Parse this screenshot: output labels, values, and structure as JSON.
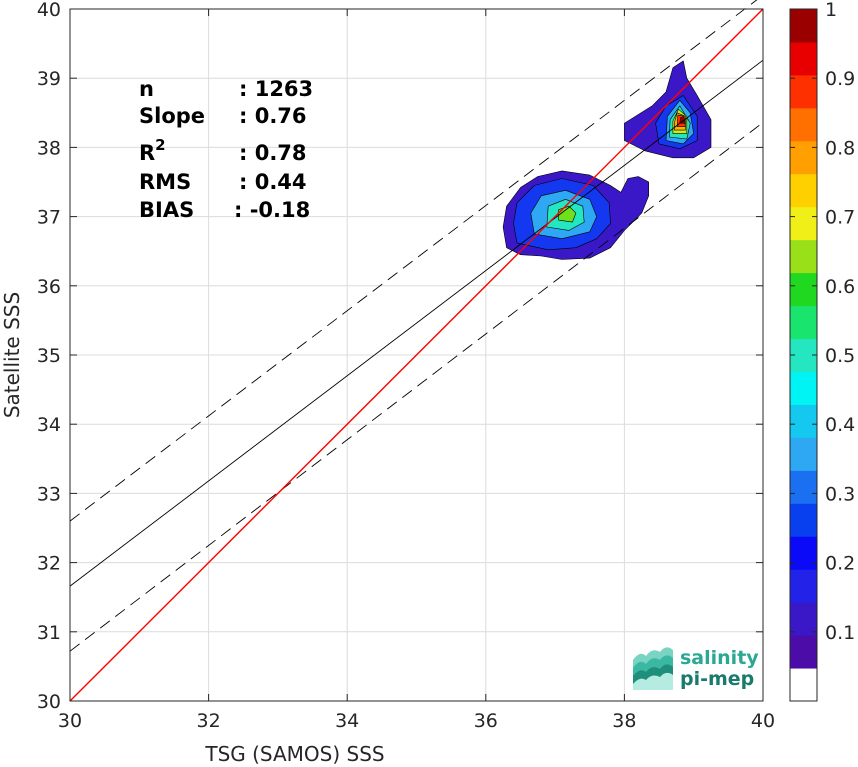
{
  "chart_data": {
    "type": "heatmap",
    "title": "",
    "xlabel": "TSG (SAMOS) SSS",
    "ylabel": "Satellite SSS",
    "xlim": [
      30,
      40
    ],
    "ylim": [
      30,
      40
    ],
    "xticks": [
      30,
      32,
      34,
      36,
      38,
      40
    ],
    "yticks": [
      30,
      31,
      32,
      33,
      34,
      35,
      36,
      37,
      38,
      39,
      40
    ],
    "grid": true,
    "stats": {
      "n": {
        "label": "n",
        "value": ": 1263"
      },
      "slope": {
        "label": "Slope",
        "value": ": 0.76"
      },
      "r2": {
        "label": "R",
        "sup": "2",
        "value": ": 0.78"
      },
      "rms": {
        "label": "RMS",
        "value": ": 0.44"
      },
      "bias": {
        "label": "BIAS",
        "value": ": -0.18"
      }
    },
    "lines": {
      "identity": {
        "x": [
          30,
          40
        ],
        "y": [
          30,
          40
        ],
        "color": "#ff0000"
      },
      "fit": {
        "x": [
          30,
          40
        ],
        "y": [
          31.66,
          39.26
        ],
        "color": "#000000"
      },
      "upper_bound": {
        "x": [
          30,
          40
        ],
        "y": [
          32.6,
          40.2
        ],
        "color": "#000000",
        "dash": true
      },
      "lower_bound": {
        "x": [
          30,
          40
        ],
        "y": [
          30.72,
          38.36
        ],
        "color": "#000000",
        "dash": true
      }
    },
    "density_clusters": [
      {
        "name": "cluster-low",
        "center": [
          37.15,
          37.02
        ],
        "levels": [
          {
            "level": 0.1,
            "color": "#3a18c8",
            "poly": [
              [
                36.3,
                36.55
              ],
              [
                36.5,
                36.45
              ],
              [
                36.8,
                36.43
              ],
              [
                37.1,
                36.38
              ],
              [
                37.5,
                36.4
              ],
              [
                37.8,
                36.55
              ],
              [
                38.0,
                36.8
              ],
              [
                38.25,
                37.05
              ],
              [
                38.35,
                37.3
              ],
              [
                38.35,
                37.5
              ],
              [
                38.2,
                37.58
              ],
              [
                38.05,
                37.55
              ],
              [
                37.95,
                37.35
              ],
              [
                37.8,
                37.45
              ],
              [
                37.5,
                37.6
              ],
              [
                37.1,
                37.66
              ],
              [
                36.75,
                37.58
              ],
              [
                36.5,
                37.42
              ],
              [
                36.3,
                37.15
              ],
              [
                36.25,
                36.85
              ]
            ]
          },
          {
            "level": 0.2,
            "color": "#1438f0",
            "poly": [
              [
                36.45,
                36.62
              ],
              [
                36.9,
                36.52
              ],
              [
                37.3,
                36.55
              ],
              [
                37.6,
                36.68
              ],
              [
                37.8,
                36.9
              ],
              [
                37.78,
                37.2
              ],
              [
                37.55,
                37.45
              ],
              [
                37.1,
                37.55
              ],
              [
                36.7,
                37.45
              ],
              [
                36.45,
                37.2
              ],
              [
                36.4,
                36.9
              ]
            ]
          },
          {
            "level": 0.3,
            "color": "#2ea8f2",
            "poly": [
              [
                36.7,
                36.75
              ],
              [
                37.1,
                36.68
              ],
              [
                37.5,
                36.78
              ],
              [
                37.6,
                37.0
              ],
              [
                37.5,
                37.25
              ],
              [
                37.15,
                37.38
              ],
              [
                36.8,
                37.3
              ],
              [
                36.65,
                37.05
              ]
            ]
          },
          {
            "level": 0.4,
            "color": "#24e6c0",
            "poly": [
              [
                36.88,
                36.85
              ],
              [
                37.2,
                36.8
              ],
              [
                37.42,
                36.92
              ],
              [
                37.4,
                37.15
              ],
              [
                37.15,
                37.25
              ],
              [
                36.9,
                37.15
              ]
            ]
          },
          {
            "level": 0.55,
            "color": "#6ee01c",
            "poly": [
              [
                37.05,
                36.95
              ],
              [
                37.25,
                36.92
              ],
              [
                37.3,
                37.05
              ],
              [
                37.2,
                37.15
              ],
              [
                37.05,
                37.1
              ]
            ]
          }
        ]
      },
      {
        "name": "cluster-high",
        "center": [
          38.82,
          38.38
        ],
        "levels": [
          {
            "level": 0.1,
            "color": "#3a18c8",
            "poly": [
              [
                38.0,
                38.1
              ],
              [
                38.3,
                37.95
              ],
              [
                38.7,
                37.85
              ],
              [
                39.0,
                37.85
              ],
              [
                39.25,
                38.0
              ],
              [
                39.25,
                38.4
              ],
              [
                39.05,
                38.75
              ],
              [
                38.9,
                39.0
              ],
              [
                38.85,
                39.25
              ],
              [
                38.7,
                39.15
              ],
              [
                38.6,
                38.8
              ],
              [
                38.4,
                38.6
              ],
              [
                38.0,
                38.35
              ]
            ]
          },
          {
            "level": 0.2,
            "color": "#1438f0",
            "poly": [
              [
                38.5,
                38.05
              ],
              [
                38.8,
                37.98
              ],
              [
                39.05,
                38.1
              ],
              [
                39.05,
                38.45
              ],
              [
                38.85,
                38.75
              ],
              [
                38.6,
                38.6
              ],
              [
                38.45,
                38.35
              ]
            ]
          },
          {
            "level": 0.3,
            "color": "#2ea8f2",
            "poly": [
              [
                38.6,
                38.1
              ],
              [
                38.85,
                38.05
              ],
              [
                39.0,
                38.2
              ],
              [
                38.95,
                38.5
              ],
              [
                38.8,
                38.68
              ],
              [
                38.62,
                38.45
              ]
            ]
          },
          {
            "level": 0.45,
            "color": "#24e6c0",
            "poly": [
              [
                38.65,
                38.15
              ],
              [
                38.9,
                38.12
              ],
              [
                38.95,
                38.35
              ],
              [
                38.8,
                38.6
              ],
              [
                38.66,
                38.4
              ]
            ]
          },
          {
            "level": 0.6,
            "color": "#c8f010",
            "poly": [
              [
                38.7,
                38.2
              ],
              [
                38.9,
                38.2
              ],
              [
                38.9,
                38.45
              ],
              [
                38.78,
                38.55
              ],
              [
                38.7,
                38.38
              ]
            ]
          },
          {
            "level": 0.75,
            "color": "#ffb000",
            "poly": [
              [
                38.72,
                38.25
              ],
              [
                38.88,
                38.25
              ],
              [
                38.88,
                38.45
              ],
              [
                38.76,
                38.5
              ],
              [
                38.72,
                38.35
              ]
            ]
          },
          {
            "level": 0.85,
            "color": "#ff3000",
            "poly": [
              [
                38.76,
                38.3
              ],
              [
                38.88,
                38.3
              ],
              [
                38.86,
                38.45
              ],
              [
                38.77,
                38.47
              ]
            ]
          },
          {
            "level": 0.95,
            "color": "#9a0000",
            "poly": [
              [
                38.8,
                38.35
              ],
              [
                38.88,
                38.35
              ],
              [
                38.86,
                38.44
              ],
              [
                38.81,
                38.43
              ]
            ]
          }
        ]
      }
    ],
    "colorbar": {
      "min": 0,
      "max": 1,
      "ticks": [
        "0.1",
        "0.2",
        "0.3",
        "0.4",
        "0.5",
        "0.6",
        "0.7",
        "0.8",
        "0.9",
        "1"
      ],
      "bands": [
        "#ffffff",
        "#4c0ca8",
        "#3a18c8",
        "#2222e8",
        "#0a0af8",
        "#0840f0",
        "#1a70f0",
        "#2ea8f2",
        "#14c8f0",
        "#00f4f4",
        "#24e6c0",
        "#18e46e",
        "#20d820",
        "#9ae018",
        "#f0f018",
        "#ffd000",
        "#ffa000",
        "#ff7000",
        "#ff3000",
        "#e80000",
        "#9a0000"
      ]
    },
    "logo": {
      "line1": "salinity",
      "line2": "pi-mep",
      "color": "#2aa894",
      "color2": "#1a7a6c"
    }
  }
}
